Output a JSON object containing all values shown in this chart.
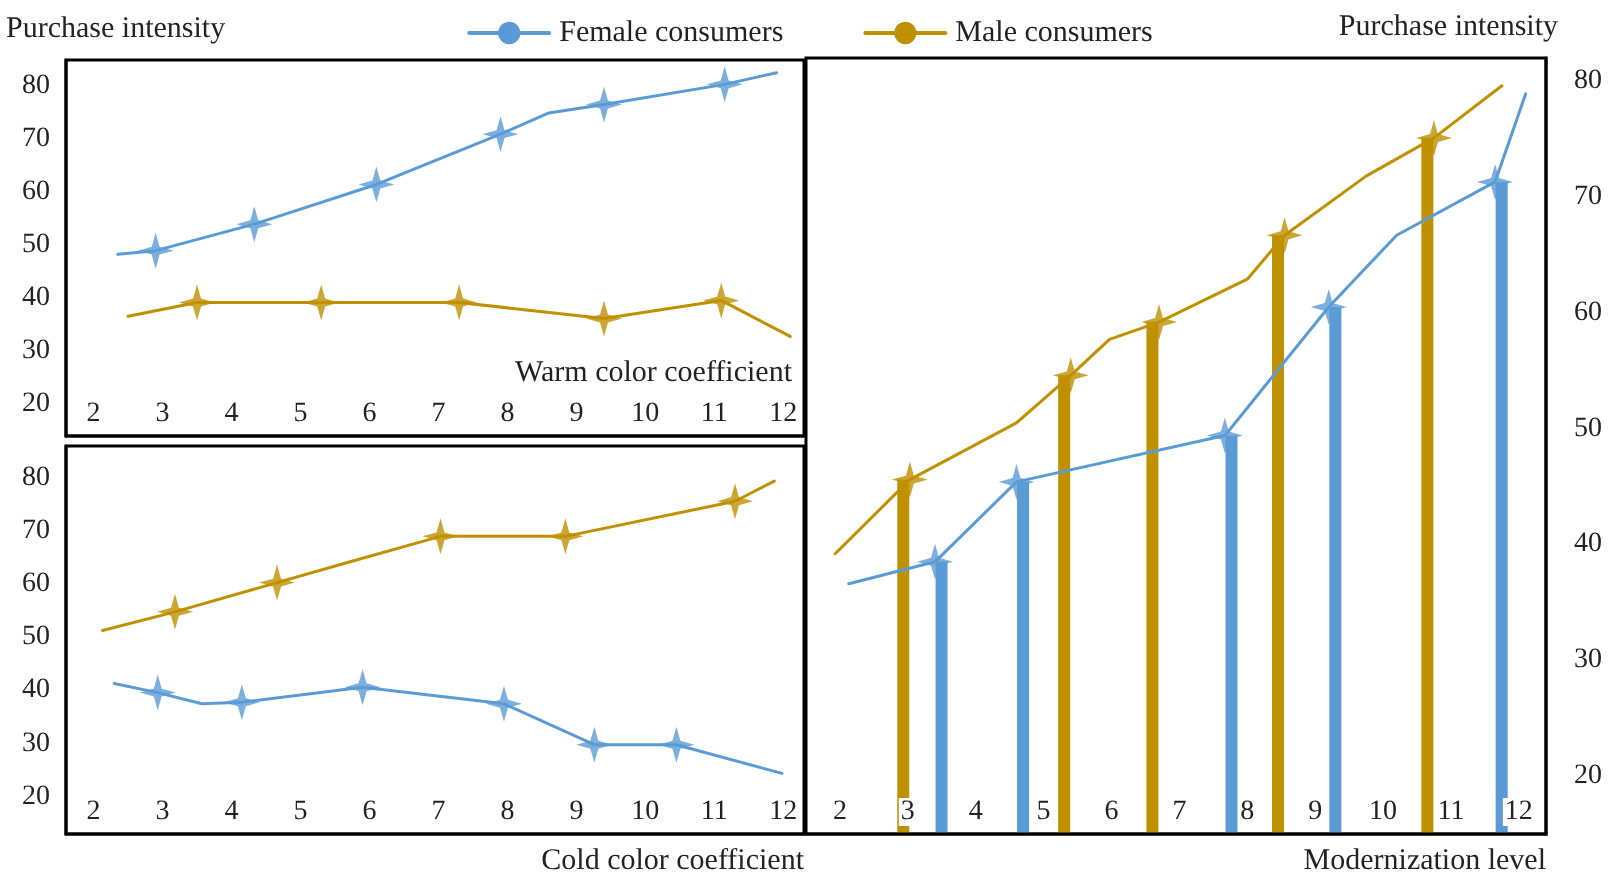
{
  "chart_data": [
    {
      "type": "line",
      "ylabel": "Purchase intensity",
      "xlabel": "Warm color coefficient",
      "legend": "top",
      "grid": false,
      "xlim": [
        1.6,
        12.3
      ],
      "xticks": [
        2,
        3,
        4,
        5,
        6,
        7,
        8,
        9,
        10,
        11,
        12
      ],
      "ylim": [
        14,
        85
      ],
      "yticks": [
        20,
        30,
        40,
        50,
        60,
        70,
        80
      ],
      "series": [
        {
          "name": "Female consumers",
          "color": "#5b9bd5",
          "marker": "none",
          "x": [
            2.35,
            2.9,
            4.33,
            6.1,
            7.9,
            8.6,
            9.4,
            11.15,
            11.9
          ],
          "values": [
            48.3,
            49,
            54,
            61.5,
            71,
            75,
            76.6,
            80.4,
            82.6
          ]
        },
        {
          "type": "scatter",
          "color": "#5b9bd5",
          "marker": "star",
          "x": [
            2.9,
            4.33,
            6.1,
            7.9,
            9.4,
            11.15
          ],
          "values": [
            49,
            54,
            61.5,
            71,
            76.6,
            80.4
          ]
        },
        {
          "name": "Male consumers",
          "color": "#bf9000",
          "marker": "none",
          "x": [
            2.5,
            3.5,
            5.3,
            7.3,
            9.4,
            11.1,
            12.1
          ],
          "values": [
            36.6,
            39.2,
            39.2,
            39.2,
            36.2,
            39.6,
            32.8
          ]
        },
        {
          "type": "scatter",
          "color": "#bf9000",
          "marker": "star",
          "x": [
            3.5,
            5.3,
            7.3,
            9.4,
            11.1
          ],
          "values": [
            39.2,
            39.2,
            39.2,
            36.2,
            39.6
          ]
        }
      ]
    },
    {
      "type": "line",
      "xlabel": "Cold color coefficient",
      "grid": false,
      "xlim": [
        1.6,
        12.3
      ],
      "xticks": [
        2,
        3,
        4,
        5,
        6,
        7,
        8,
        9,
        10,
        11,
        12
      ],
      "ylim": [
        13,
        86
      ],
      "yticks": [
        20,
        30,
        40,
        50,
        60,
        70,
        80
      ],
      "series": [
        {
          "color": "#bf9000",
          "marker": "none",
          "x": [
            2.13,
            3.18,
            4.66,
            5.77,
            7.03,
            8.84,
            11.3,
            11.87
          ],
          "values": [
            51.3,
            54.8,
            60.3,
            64.4,
            69,
            69,
            75.6,
            79.4
          ]
        },
        {
          "type": "scatter",
          "color": "#bf9000",
          "marker": "star",
          "x": [
            3.18,
            4.66,
            7.03,
            8.84,
            11.3
          ],
          "values": [
            54.8,
            60.3,
            69,
            69,
            75.6
          ]
        },
        {
          "color": "#5b9bd5",
          "marker": "none",
          "x": [
            2.3,
            2.93,
            3.57,
            4.15,
            5.9,
            7.95,
            9.26,
            10.45,
            11.98
          ],
          "values": [
            41.3,
            39.6,
            37.5,
            37.8,
            40.6,
            37.5,
            29.8,
            29.8,
            24.4
          ]
        },
        {
          "type": "scatter",
          "color": "#5b9bd5",
          "marker": "star",
          "x": [
            2.93,
            4.15,
            5.9,
            7.95,
            9.26,
            10.45
          ],
          "values": [
            39.6,
            37.8,
            40.6,
            37.5,
            29.8,
            29.8
          ]
        }
      ]
    },
    {
      "type": "line",
      "xlabel": "Modernization level",
      "y2label": "Purchase intensity",
      "grid": false,
      "xlim": [
        1.5,
        12.4
      ],
      "xticks": [
        2,
        3,
        4,
        5,
        6,
        7,
        8,
        9,
        10,
        11,
        12
      ],
      "y2lim": [
        15,
        82
      ],
      "y2ticks": [
        20,
        30,
        40,
        50,
        60,
        70,
        80
      ],
      "series": [
        {
          "axis": "y2",
          "color": "#bf9000",
          "marker": "none",
          "x": [
            1.93,
            3.03,
            4.6,
            5.4,
            5.97,
            6.7,
            8.0,
            8.55,
            9.75,
            10.75,
            11.75
          ],
          "values": [
            39.2,
            45.6,
            50.5,
            54.6,
            57.7,
            59.2,
            62.9,
            66.7,
            71.8,
            75.1,
            79.6
          ]
        },
        {
          "axis": "y2",
          "type": "bar",
          "color": "#bf9000",
          "x": [
            3.03,
            5.4,
            6.7,
            8.55,
            10.75
          ],
          "values": [
            45.6,
            54.6,
            59.2,
            66.7,
            75.1
          ]
        },
        {
          "axis": "y2",
          "type": "scatter",
          "color": "#bf9000",
          "marker": "star",
          "x": [
            3.03,
            5.4,
            6.7,
            8.55,
            10.75
          ],
          "values": [
            45.6,
            54.6,
            59.2,
            66.7,
            75.1
          ]
        },
        {
          "axis": "y2",
          "color": "#5b9bd5",
          "marker": "none",
          "x": [
            2.13,
            3.4,
            4.6,
            7.67,
            9.2,
            10.2,
            11.65,
            12.1
          ],
          "values": [
            36.6,
            38.5,
            45.4,
            49.4,
            60.5,
            66.7,
            71.3,
            78.9
          ]
        },
        {
          "axis": "y2",
          "type": "bar",
          "color": "#5b9bd5",
          "x": [
            3.4,
            4.6,
            7.67,
            9.2,
            11.65
          ],
          "values": [
            38.5,
            45.4,
            49.4,
            60.5,
            71.3
          ]
        },
        {
          "axis": "y2",
          "type": "scatter",
          "color": "#5b9bd5",
          "marker": "star",
          "x": [
            3.4,
            4.6,
            7.67,
            9.2,
            11.65
          ],
          "values": [
            38.5,
            45.4,
            49.4,
            60.5,
            71.3
          ]
        }
      ]
    }
  ]
}
